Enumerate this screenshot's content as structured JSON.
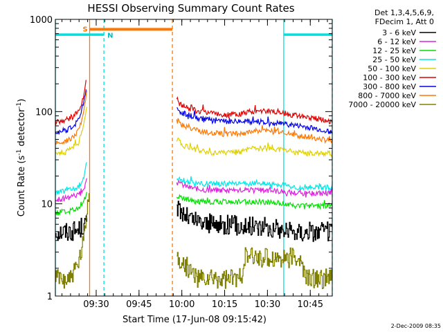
{
  "chart_data": {
    "type": "line",
    "title": "HESSI Observing Summary Count Rates",
    "xlabel": "Start Time (17-Jun-08 09:15:42)",
    "ylabel_main": "Count Rate (s",
    "ylabel_sup1": "-1",
    "ylabel_mid": " detector",
    "ylabel_sup2": "-1",
    "ylabel_end": ")",
    "x_unit": "minutes after 09:15:42",
    "xlim": [
      0,
      97
    ],
    "ylim": [
      1,
      1000
    ],
    "yscale": "log",
    "grid": false,
    "legend_placement": "outside-right",
    "x_ticks": [
      {
        "value": 14.3,
        "label": "09:30"
      },
      {
        "value": 29.3,
        "label": "09:45"
      },
      {
        "value": 44.3,
        "label": "10:00"
      },
      {
        "value": 59.3,
        "label": "10:15"
      },
      {
        "value": 74.3,
        "label": "10:30"
      },
      {
        "value": 89.3,
        "label": "10:45"
      }
    ],
    "y_ticks": [
      {
        "value": 1,
        "label": "1"
      },
      {
        "value": 10,
        "label": "10"
      },
      {
        "value": 100,
        "label": "100"
      },
      {
        "value": 1000,
        "label": "1000"
      }
    ],
    "legend_header": [
      "Det 1,3,4,5,6,9,",
      "FDecim 1, Att 0"
    ],
    "series": [
      {
        "name": "3 - 6 keV",
        "color": "#000000",
        "style": "step",
        "segments": [
          {
            "x": [
              0,
              4,
              8,
              10,
              11
            ],
            "y": [
              5,
              5,
              5.2,
              6,
              6
            ]
          },
          {
            "x": [
              42.5,
              47,
              50,
              55,
              60,
              65,
              70,
              75,
              80,
              85,
              90,
              97
            ],
            "y": [
              9,
              7,
              6.5,
              6,
              6,
              5.8,
              5.8,
              5.5,
              5.2,
              5,
              5,
              5
            ]
          }
        ]
      },
      {
        "name": "6 - 12 keV",
        "color": "#e020e0",
        "style": "line",
        "segments": [
          {
            "x": [
              0,
              4,
              8,
              10,
              11
            ],
            "y": [
              11,
              11.5,
              12.5,
              15,
              18
            ]
          },
          {
            "x": [
              42.5,
              47,
              50,
              55,
              60,
              65,
              70,
              75,
              80,
              85,
              90,
              97
            ],
            "y": [
              17,
              15,
              14.5,
              14,
              14,
              14,
              14,
              14,
              13.5,
              13,
              13,
              13
            ]
          }
        ]
      },
      {
        "name": "12 - 25 keV",
        "color": "#00e000",
        "style": "line",
        "segments": [
          {
            "x": [
              0,
              4,
              8,
              10,
              11
            ],
            "y": [
              8,
              8.2,
              9,
              11,
              13
            ]
          },
          {
            "x": [
              42.5,
              47,
              50,
              55,
              60,
              65,
              70,
              75,
              80,
              85,
              90,
              97
            ],
            "y": [
              12,
              11,
              10.5,
              10.5,
              10.5,
              10.5,
              10.5,
              10.5,
              10,
              9.5,
              9.5,
              9.5
            ]
          }
        ]
      },
      {
        "name": "25 - 50 keV",
        "color": "#00e8e8",
        "style": "line",
        "segments": [
          {
            "x": [
              0,
              4,
              8,
              10,
              11
            ],
            "y": [
              13,
              14,
              15,
              20,
              28
            ]
          },
          {
            "x": [
              42.5,
              47,
              50,
              55,
              60,
              65,
              70,
              75,
              80,
              85,
              90,
              97
            ],
            "y": [
              19,
              17,
              16.5,
              16.5,
              16.5,
              16.5,
              16.5,
              16.5,
              16,
              15,
              15,
              15
            ]
          }
        ]
      },
      {
        "name": "50 - 100 keV",
        "color": "#e0d000",
        "style": "line",
        "segments": [
          {
            "x": [
              0,
              2,
              4,
              6,
              8,
              9,
              10,
              11
            ],
            "y": [
              34,
              35,
              37,
              40,
              46,
              55,
              75,
              120
            ]
          },
          {
            "x": [
              42.5,
              45,
              50,
              55,
              60,
              65,
              70,
              75,
              80,
              85,
              90,
              97
            ],
            "y": [
              50,
              43,
              38,
              36,
              36,
              37,
              40,
              40,
              38,
              36,
              35,
              35
            ]
          }
        ]
      },
      {
        "name": "100 - 300 keV",
        "color": "#e00000",
        "style": "line",
        "segments": [
          {
            "x": [
              0,
              2,
              4,
              6,
              8,
              9,
              10,
              10.8
            ],
            "y": [
              78,
              79,
              82,
              88,
              100,
              120,
              150,
              215
            ]
          },
          {
            "x": [
              42.5,
              45,
              50,
              55,
              60,
              65,
              70,
              75,
              80,
              85,
              90,
              97
            ],
            "y": [
              128,
              115,
              100,
              95,
              92,
              95,
              102,
              102,
              96,
              90,
              85,
              78
            ]
          }
        ]
      },
      {
        "name": "300 - 800 keV",
        "color": "#0000e8",
        "style": "line",
        "segments": [
          {
            "x": [
              0,
              2,
              4,
              6,
              8,
              9,
              10,
              10.8
            ],
            "y": [
              60,
              61,
              63,
              68,
              80,
              100,
              130,
              185
            ]
          },
          {
            "x": [
              42.5,
              45,
              50,
              55,
              60,
              65,
              70,
              75,
              80,
              85,
              90,
              97
            ],
            "y": [
              105,
              95,
              85,
              80,
              78,
              78,
              78,
              76,
              73,
              70,
              66,
              60
            ]
          }
        ]
      },
      {
        "name": "800 - 7000 keV",
        "color": "#ff7700",
        "style": "line",
        "segments": [
          {
            "x": [
              0,
              2,
              4,
              6,
              8,
              9,
              10,
              11
            ],
            "y": [
              45,
              46,
              48,
              52,
              62,
              75,
              105,
              170
            ]
          },
          {
            "x": [
              42.5,
              45,
              50,
              55,
              60,
              65,
              70,
              75,
              80,
              85,
              90,
              97
            ],
            "y": [
              80,
              70,
              62,
              58,
              57,
              58,
              62,
              62,
              58,
              55,
              52,
              48
            ]
          }
        ]
      },
      {
        "name": "7000 - 20000 keV",
        "color": "#808000",
        "style": "step",
        "segments": [
          {
            "x": [
              0,
              5,
              8,
              10,
              11,
              11.8
            ],
            "y": [
              1.55,
              1.55,
              2.2,
              4,
              9,
              13
            ]
          },
          {
            "x": [
              42.5,
              45,
              50,
              55,
              60,
              65,
              66,
              70,
              75,
              80,
              85,
              88,
              92,
              97
            ],
            "y": [
              2.6,
              2.2,
              1.55,
              1.55,
              1.55,
              1.55,
              2.6,
              2.6,
              2.6,
              2.6,
              2.6,
              1.55,
              1.55,
              1.55
            ]
          }
        ]
      }
    ],
    "markers": {
      "cyan_solid_x": [
        0,
        80
      ],
      "cyan_dashed_x": [
        17,
        97
      ],
      "orange_solid_x": [
        12
      ],
      "orange_dashed_x": [
        41
      ],
      "orange_bar": {
        "x": [
          12,
          41
        ],
        "y": 780,
        "label": "S"
      },
      "cyan_bars": [
        {
          "x": [
            0,
            17
          ],
          "y": 680,
          "label": "N"
        },
        {
          "x": [
            80,
            97
          ],
          "y": 680,
          "label": ""
        }
      ]
    }
  },
  "footer": {
    "timestamp": "2-Dec-2009 08:35"
  }
}
